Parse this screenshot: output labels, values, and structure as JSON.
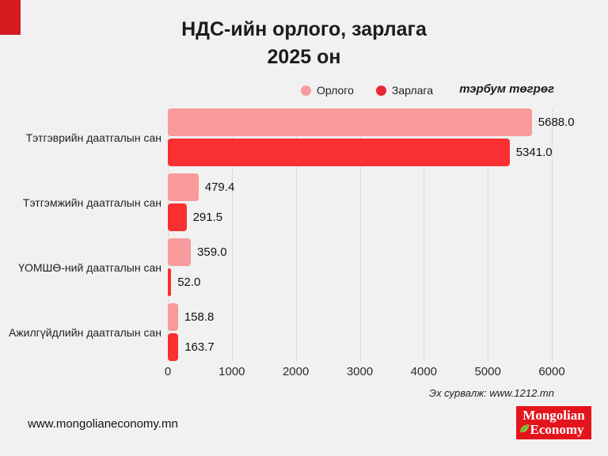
{
  "page": {
    "background": "#f1f1f2",
    "accent_red": "#d61b21"
  },
  "header": {
    "title_line1": "НДС-ийн орлого, зарлага",
    "title_line2": "2025 он",
    "unit_label": "тэрбум төгрөг"
  },
  "legend": [
    {
      "label": "Орлого",
      "color": "#f59aa0"
    },
    {
      "label": "Зарлага",
      "color": "#ea2730"
    }
  ],
  "chart_data": {
    "type": "bar",
    "orientation": "horizontal",
    "title": "НДС-ийн орлого, зарлага 2025 он",
    "unit": "тэрбум төгрөг",
    "categories": [
      "Тэтгэврийн даатгалын сан",
      "Тэтгэмжийн даатгалын сан",
      "ҮОМШӨ-ний даатгалын сан",
      "Ажилгүйдлийн даатгалын сан"
    ],
    "series": [
      {
        "name": "Орлого",
        "color": "#f99a9c",
        "values": [
          5688.0,
          479.4,
          359.0,
          158.8
        ]
      },
      {
        "name": "Зарлага",
        "color": "#f92f31",
        "values": [
          5341.0,
          291.5,
          52.0,
          163.7
        ]
      }
    ],
    "xlim": [
      0,
      6000
    ],
    "x_ticks": [
      "0",
      "1000",
      "2000",
      "3000",
      "4000",
      "5000",
      "6000"
    ],
    "grid": true,
    "legend_position": "top-center",
    "value_label_decimals": 1
  },
  "footer": {
    "source": "Эх сурвалж: www.1212.mn",
    "website": "www.mongolianeconomy.mn",
    "logo": {
      "line1": "Mongolian",
      "line2": "Economy",
      "bg_color": "#e3141c",
      "leaf_color": "#8dc63f"
    }
  }
}
